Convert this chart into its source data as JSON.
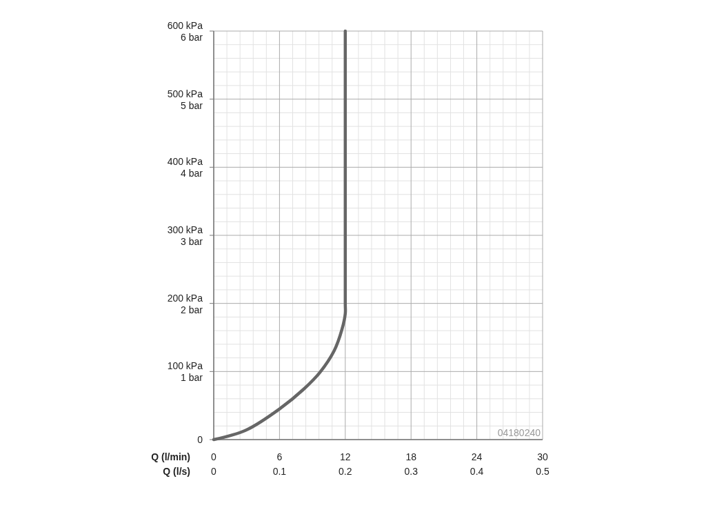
{
  "chart_data": {
    "type": "line",
    "xlabel": "Q (l/min)",
    "x2label": "Q (l/s)",
    "xlim": [
      0,
      30
    ],
    "xticks": [
      0,
      6,
      12,
      18,
      24,
      30
    ],
    "x2lim": [
      0,
      0.5
    ],
    "x2ticks": [
      0,
      0.1,
      0.2,
      0.3,
      0.4,
      0.5
    ],
    "ylim": [
      0,
      600
    ],
    "yticks": [
      0,
      {
        "value": 100,
        "label": "100 kPa"
      },
      {
        "value": 200,
        "label": "200 kPa"
      },
      {
        "value": 300,
        "label": "300 kPa"
      },
      {
        "value": 400,
        "label": "400 kPa"
      },
      {
        "value": 500,
        "label": "500 kPa"
      },
      {
        "value": 600,
        "label": "600 kPa"
      }
    ],
    "y2lim": [
      0,
      6
    ],
    "y2ticks": [
      {
        "value": 1,
        "label": "1 bar"
      },
      {
        "value": 2,
        "label": "2 bar"
      },
      {
        "value": 3,
        "label": "3 bar"
      },
      {
        "value": 4,
        "label": "4 bar"
      },
      {
        "value": 5,
        "label": "5 bar"
      },
      {
        "value": 6,
        "label": "6 bar"
      }
    ],
    "grid": true,
    "series": [
      {
        "color": "#666666",
        "x": [
          0,
          2.95,
          6.08,
          8.2,
          9.7,
          11.0,
          11.7,
          12.0,
          12,
          12
        ],
        "values": [
          0,
          14,
          46,
          74,
          99,
          131,
          162,
          185,
          200,
          600
        ]
      }
    ],
    "annotations": [
      "04180240"
    ]
  }
}
